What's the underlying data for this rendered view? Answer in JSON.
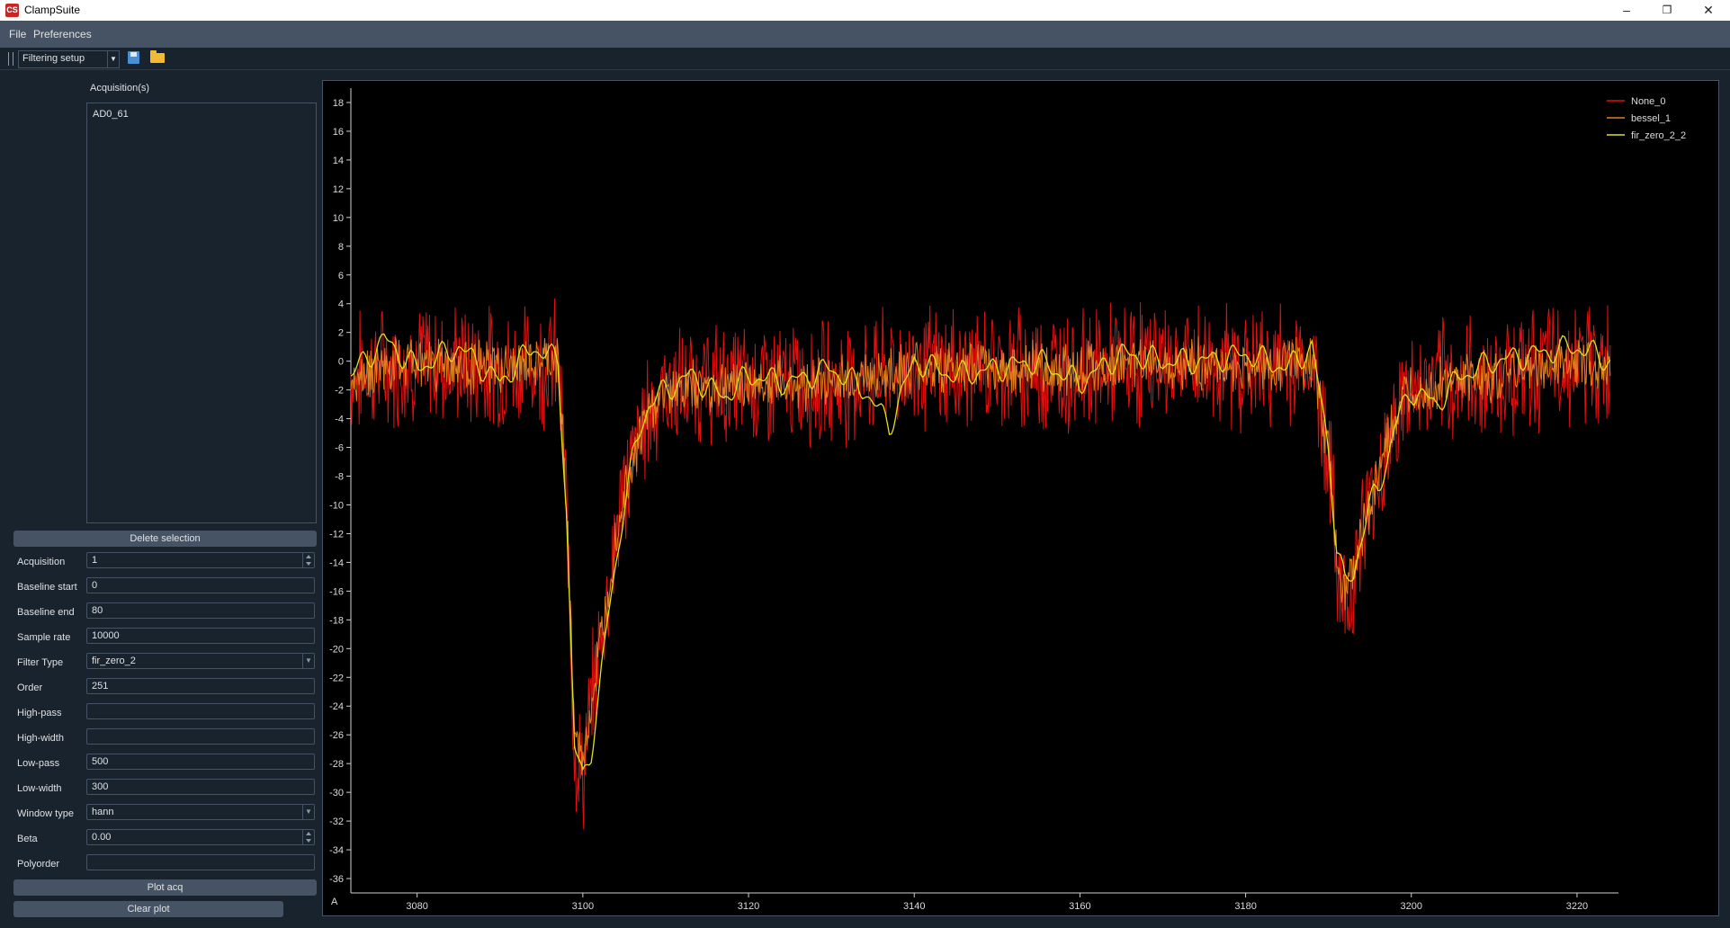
{
  "window": {
    "title": "ClampSuite",
    "app_icon_text": "CS",
    "controls": {
      "minimize": "–",
      "restore": "❐",
      "close": "✕"
    }
  },
  "menubar": {
    "items": [
      "File",
      "Preferences"
    ]
  },
  "toolbar": {
    "setup_combo_value": "Filtering setup",
    "icons": [
      "save-icon",
      "folder-icon"
    ]
  },
  "left_panel": {
    "acquisitions_header": "Acquisition(s)",
    "acquisitions": [
      "AD0_61"
    ],
    "delete_button": "Delete selection",
    "fields": {
      "acquisition": {
        "label": "Acquisition",
        "value": "1"
      },
      "baseline_start": {
        "label": "Baseline start",
        "value": "0"
      },
      "baseline_end": {
        "label": "Baseline end",
        "value": "80"
      },
      "sample_rate": {
        "label": "Sample rate",
        "value": "10000"
      },
      "filter_type": {
        "label": "Filter Type",
        "value": "fir_zero_2"
      },
      "order": {
        "label": "Order",
        "value": "251"
      },
      "high_pass": {
        "label": "High-pass",
        "value": ""
      },
      "high_width": {
        "label": "High-width",
        "value": ""
      },
      "low_pass": {
        "label": "Low-pass",
        "value": "500"
      },
      "low_width": {
        "label": "Low-width",
        "value": "300"
      },
      "window_type": {
        "label": "Window type",
        "value": "hann"
      },
      "beta": {
        "label": "Beta",
        "value": "0.00"
      },
      "polyorder": {
        "label": "Polyorder",
        "value": ""
      }
    },
    "plot_button": "Plot acq",
    "clear_button": "Clear plot"
  },
  "plot": {
    "auto_button": "A"
  },
  "chart_data": {
    "type": "line",
    "xlim": [
      3072,
      3225
    ],
    "ylim": [
      -37,
      19
    ],
    "xticks": [
      3080,
      3100,
      3120,
      3140,
      3160,
      3180,
      3200,
      3220
    ],
    "yticks": [
      18,
      16,
      14,
      12,
      10,
      8,
      6,
      4,
      2,
      0,
      -2,
      -4,
      -6,
      -8,
      -10,
      -12,
      -14,
      -16,
      -18,
      -20,
      -22,
      -24,
      -26,
      -28,
      -30,
      -32,
      -34,
      -36
    ],
    "grid": false,
    "legend": "top-right",
    "series": [
      {
        "name": "None_0",
        "color": "#e01010",
        "x": [
          3072,
          3080,
          3090,
          3097,
          3098,
          3099,
          3100,
          3101,
          3102,
          3103,
          3104,
          3105,
          3106,
          3107,
          3108,
          3110,
          3120,
          3130,
          3140,
          3150,
          3160,
          3170,
          3180,
          3188,
          3190,
          3191,
          3192,
          3193,
          3194,
          3195,
          3196,
          3197,
          3198,
          3200,
          3205,
          3210,
          3215,
          3220,
          3224
        ],
        "y": [
          -1,
          0,
          -0.5,
          0,
          -10,
          -27,
          -29,
          -24,
          -20,
          -16,
          -12,
          -9,
          -7,
          -5,
          -3.5,
          -2,
          -1.5,
          -1.5,
          -0.5,
          -0.5,
          -0.5,
          0,
          -0.5,
          0,
          -6,
          -14,
          -17,
          -15,
          -12,
          -10,
          -8,
          -6,
          -4,
          -2,
          -1.5,
          -1,
          -0.5,
          0,
          -0.5
        ]
      },
      {
        "name": "bessel_1",
        "color": "#e08020",
        "x": [
          3072,
          3080,
          3090,
          3097,
          3098,
          3099,
          3100,
          3101,
          3102,
          3103,
          3104,
          3105,
          3106,
          3107,
          3108,
          3110,
          3120,
          3130,
          3140,
          3150,
          3160,
          3170,
          3180,
          3188,
          3190,
          3191,
          3192,
          3193,
          3194,
          3195,
          3196,
          3197,
          3198,
          3200,
          3205,
          3210,
          3215,
          3220,
          3224
        ],
        "y": [
          -1,
          0,
          -0.5,
          0,
          -9,
          -26,
          -28,
          -24,
          -20,
          -16,
          -12,
          -9,
          -7,
          -5,
          -3.5,
          -2,
          -1.5,
          -1.5,
          -0.5,
          -0.5,
          -0.5,
          0,
          -0.5,
          0,
          -6,
          -13.5,
          -16,
          -14.5,
          -12,
          -10,
          -8,
          -6,
          -4,
          -2,
          -1.5,
          -1,
          -0.5,
          0,
          -0.5
        ]
      },
      {
        "name": "fir_zero_2_2",
        "color": "#e0e020",
        "x": [
          3072,
          3076,
          3080,
          3085,
          3090,
          3094,
          3097,
          3098,
          3099,
          3100,
          3101,
          3102,
          3103,
          3104,
          3105,
          3106,
          3107,
          3108,
          3110,
          3113,
          3117,
          3120,
          3125,
          3130,
          3134,
          3137,
          3140,
          3145,
          3150,
          3155,
          3160,
          3165,
          3170,
          3175,
          3180,
          3185,
          3188,
          3190,
          3191,
          3192,
          3193,
          3194,
          3195,
          3196,
          3197,
          3198,
          3200,
          3203,
          3206,
          3210,
          3215,
          3220,
          3224
        ],
        "y": [
          -1,
          1.5,
          -0.5,
          1,
          -1.5,
          1,
          0,
          -10,
          -27,
          -29,
          -27,
          -23,
          -18,
          -14,
          -10,
          -7,
          -4.5,
          -3,
          -2,
          -1,
          -2.5,
          -1,
          -1.5,
          -0.5,
          -2,
          -4.5,
          0,
          -1,
          -0.5,
          0,
          -1.5,
          0.5,
          0,
          0,
          0.5,
          -0.5,
          1,
          -6,
          -13,
          -15.5,
          -15,
          -12,
          -10,
          -9,
          -7,
          -4.5,
          -2,
          -3,
          -1,
          0,
          0.5,
          1,
          0
        ]
      }
    ]
  }
}
